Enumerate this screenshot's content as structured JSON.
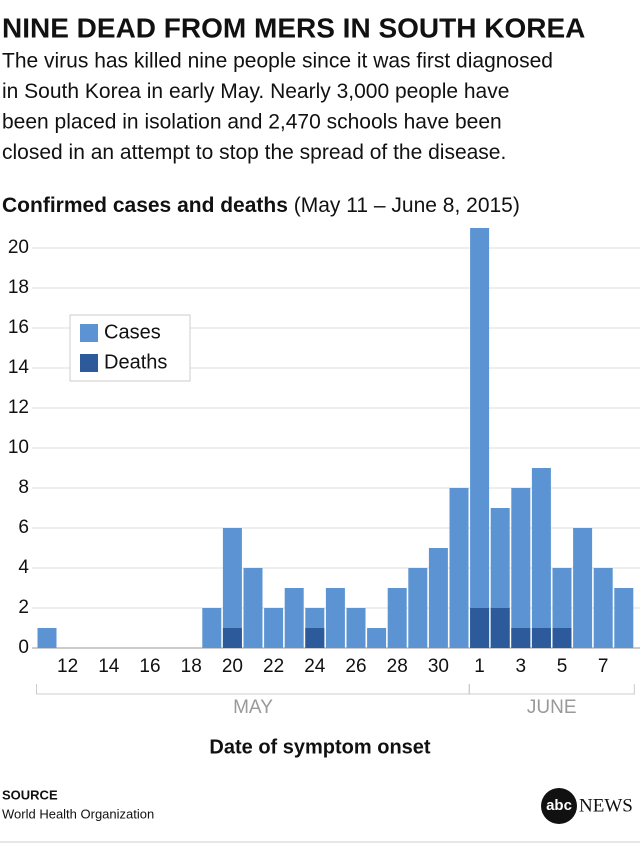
{
  "chart_data": {
    "type": "bar",
    "title": "NINE DEAD FROM MERS IN SOUTH KOREA",
    "subtitle_lines": [
      "The virus has killed nine people since it was first diagnosed",
      "in South Korea in early May. Nearly 3,000 people have",
      "been placed in isolation and 2,470 schools have been",
      "closed in an attempt to stop the spread of the disease."
    ],
    "chart_title": "Confirmed cases and deaths",
    "chart_subtitle": "(May 11 – June 8, 2015)",
    "categories": [
      null,
      "12",
      null,
      "14",
      null,
      "16",
      null,
      "18",
      null,
      "20",
      null,
      "22",
      null,
      "24",
      null,
      "26",
      null,
      "28",
      null,
      "30",
      null,
      "1",
      null,
      "3",
      null,
      "5",
      null,
      "7",
      null
    ],
    "groups": [
      {
        "label": "MAY",
        "start": 0,
        "end": 20
      },
      {
        "label": "JUNE",
        "start": 21,
        "end": 28
      }
    ],
    "series": [
      {
        "name": "Cases",
        "color": "#5b93d3",
        "values": [
          1,
          0,
          0,
          0,
          0,
          0,
          0,
          0,
          2,
          6,
          4,
          2,
          3,
          2,
          3,
          2,
          1,
          3,
          4,
          5,
          8,
          21,
          7,
          8,
          9,
          4,
          6,
          4,
          3
        ]
      },
      {
        "name": "Deaths",
        "color": "#2c5a9a",
        "values": [
          0,
          0,
          0,
          0,
          0,
          0,
          0,
          0,
          0,
          1,
          0,
          0,
          0,
          1,
          0,
          0,
          0,
          0,
          0,
          0,
          0,
          2,
          2,
          1,
          1,
          1,
          0,
          0,
          0
        ]
      }
    ],
    "ylim": [
      0,
      21
    ],
    "yticks": [
      0,
      2,
      4,
      6,
      8,
      10,
      12,
      14,
      16,
      18,
      20
    ],
    "grid": true,
    "legend": "upper-left",
    "x_label": "Date of symptom onset",
    "source_label": "SOURCE",
    "source": "World Health Organization",
    "logo": [
      "abc",
      "NEWS"
    ]
  }
}
